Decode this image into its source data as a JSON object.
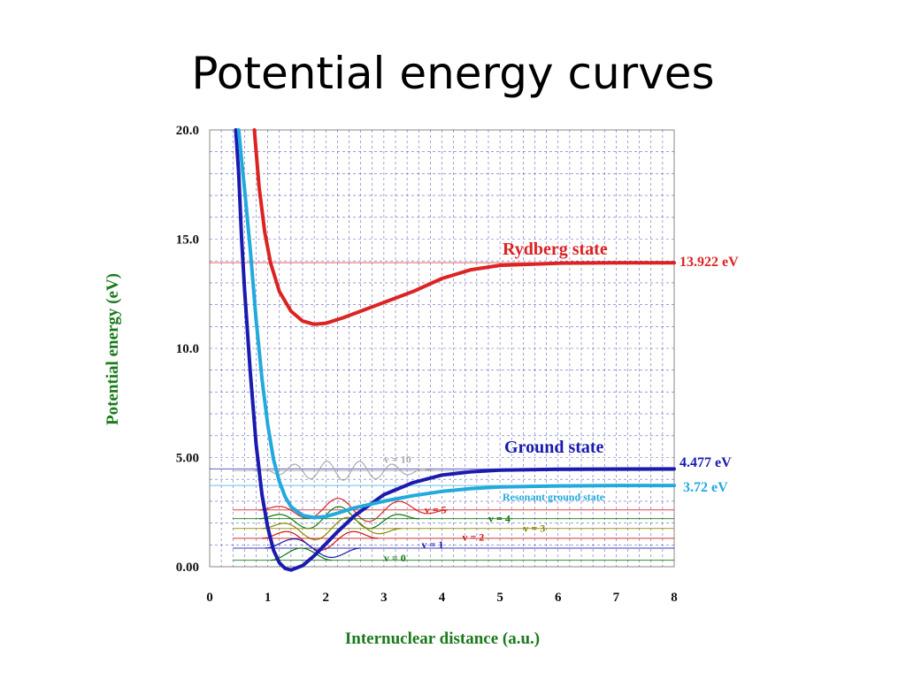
{
  "slide": {
    "title": "Potential energy curves"
  },
  "colors": {
    "rydberg": "#dd2222",
    "ground": "#1a1ab0",
    "resonant": "#22aadd",
    "v10": "#aaaaaa",
    "v5": "#dd2222",
    "v4": "#117711",
    "v3": "#888800",
    "v2": "#cc1111",
    "v1": "#1a1ab0",
    "v0": "#117711",
    "grid": "#3333aa",
    "axis_title": "#1a7a1a"
  },
  "chart_data": {
    "type": "line",
    "xlabel": "Internuclear distance (a.u.)",
    "ylabel": "Potential energy (eV)",
    "xlim": [
      0,
      8
    ],
    "ylim": [
      0,
      20
    ],
    "xticks": [
      "0",
      "1",
      "2",
      "3",
      "4",
      "5",
      "6",
      "7",
      "8"
    ],
    "yticks": [
      "0.00",
      "5.00",
      "10.0",
      "15.0",
      "20.0"
    ],
    "grid": true,
    "series": [
      {
        "name": "Rydberg state",
        "color_key": "rydberg",
        "x": [
          0.77,
          0.85,
          0.95,
          1.05,
          1.2,
          1.4,
          1.6,
          1.8,
          2.0,
          2.3,
          2.6,
          3.0,
          3.5,
          4.0,
          4.5,
          5.0,
          6.0,
          7.0,
          8.0
        ],
        "y": [
          20.0,
          17.4,
          15.3,
          13.9,
          12.6,
          11.7,
          11.25,
          11.1,
          11.15,
          11.4,
          11.7,
          12.1,
          12.6,
          13.2,
          13.6,
          13.8,
          13.9,
          13.92,
          13.92
        ]
      },
      {
        "name": "Ground state",
        "color_key": "ground",
        "x": [
          0.45,
          0.5,
          0.55,
          0.6,
          0.7,
          0.8,
          0.9,
          1.0,
          1.1,
          1.2,
          1.3,
          1.4,
          1.6,
          1.8,
          2.0,
          2.2,
          2.5,
          3.0,
          3.5,
          4.0,
          4.5,
          5.0,
          6.0,
          7.0,
          8.0
        ],
        "y": [
          20.0,
          18.0,
          15.0,
          12.7,
          8.9,
          5.6,
          3.3,
          1.8,
          0.75,
          0.18,
          -0.08,
          -0.15,
          0.05,
          0.5,
          1.05,
          1.6,
          2.35,
          3.3,
          3.85,
          4.2,
          4.35,
          4.42,
          4.46,
          4.475,
          4.477
        ]
      },
      {
        "name": "Resonant ground state",
        "color_key": "resonant",
        "x": [
          0.5,
          0.55,
          0.6,
          0.7,
          0.8,
          0.9,
          1.0,
          1.1,
          1.2,
          1.3,
          1.4,
          1.6,
          1.8,
          2.0,
          2.2,
          2.5,
          3.0,
          3.5,
          4.0,
          4.5,
          5.0,
          6.0,
          7.0,
          8.0
        ],
        "y": [
          20.0,
          18.6,
          17.3,
          14.5,
          11.3,
          8.6,
          6.5,
          4.9,
          3.9,
          3.2,
          2.75,
          2.35,
          2.25,
          2.3,
          2.45,
          2.7,
          3.0,
          3.25,
          3.45,
          3.58,
          3.65,
          3.7,
          3.72,
          3.72
        ]
      }
    ],
    "asymptotes": [
      {
        "value": 13.922,
        "label": "13.922 eV",
        "color_key": "rydberg"
      },
      {
        "value": 4.477,
        "label": "4.477 eV",
        "color_key": "ground"
      },
      {
        "value": 3.72,
        "label": "3.72 eV",
        "color_key": "resonant"
      }
    ],
    "vibrational_levels": [
      {
        "label": "v = 10",
        "energy": 4.4,
        "xmin": 0.75,
        "xmax": 3.85,
        "color_key": "v10"
      },
      {
        "label": "v = 5",
        "energy": 2.6,
        "xmin": 0.85,
        "xmax": 4.1,
        "color_key": "v5"
      },
      {
        "label": "v = 4",
        "energy": 2.2,
        "xmin": 0.85,
        "xmax": 3.6,
        "color_key": "v4"
      },
      {
        "label": "v = 3",
        "energy": 1.75,
        "xmin": 0.9,
        "xmax": 3.3,
        "color_key": "v3"
      },
      {
        "label": "v = 2",
        "energy": 1.3,
        "xmin": 0.9,
        "xmax": 2.9,
        "color_key": "v2"
      },
      {
        "label": "v = 1",
        "energy": 0.85,
        "xmin": 0.95,
        "xmax": 2.6,
        "color_key": "v1"
      },
      {
        "label": "v = 0",
        "energy": 0.3,
        "xmin": 1.05,
        "xmax": 2.1,
        "color_key": "v0"
      }
    ],
    "annotations": {
      "rydberg": "Rydberg state",
      "ground": "Ground state",
      "resonant": "Resonant ground state"
    }
  }
}
